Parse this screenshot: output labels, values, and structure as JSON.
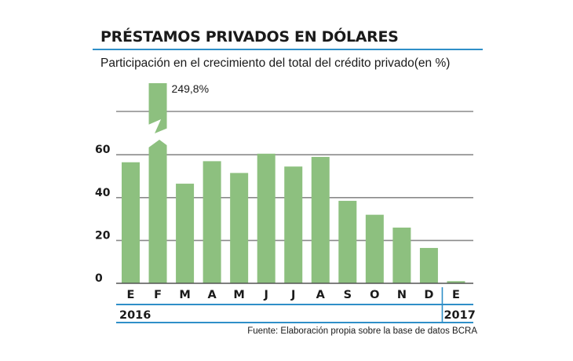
{
  "header": {
    "title": "PRÉSTAMOS PRIVADOS EN DÓLARES",
    "subtitle": "Participación en el crecimiento del total del crédito privado(en %)"
  },
  "footer": {
    "source": "Fuente: Elaboración propia sobre la base de datos BCRA"
  },
  "colors": {
    "bar": "#8dc07f",
    "grid": "#8a8a8a",
    "rule": "#2f8fc8",
    "text": "#1a1a1a"
  },
  "chart_data": {
    "type": "bar",
    "title": "PRÉSTAMOS PRIVADOS EN DÓLARES",
    "subtitle": "Participación en el crecimiento del total del crédito privado(en %)",
    "categories": [
      "E",
      "F",
      "M",
      "A",
      "M",
      "J",
      "J",
      "A",
      "S",
      "O",
      "N",
      "D",
      "E"
    ],
    "values": [
      56.5,
      249.8,
      46.5,
      57,
      51.5,
      60.5,
      54.5,
      59,
      38.5,
      32,
      26,
      16.5,
      1
    ],
    "year_groups": [
      {
        "label": "2016",
        "from": 0,
        "to": 11
      },
      {
        "label": "2017",
        "from": 12,
        "to": 12
      }
    ],
    "annotations": [
      {
        "category_index": 1,
        "text": "249,8%"
      }
    ],
    "yticks": [
      0,
      20,
      40,
      60
    ],
    "ylim": [
      0,
      90
    ],
    "axis_break": {
      "category_index": 1
    },
    "grid": true,
    "legend": "none"
  }
}
